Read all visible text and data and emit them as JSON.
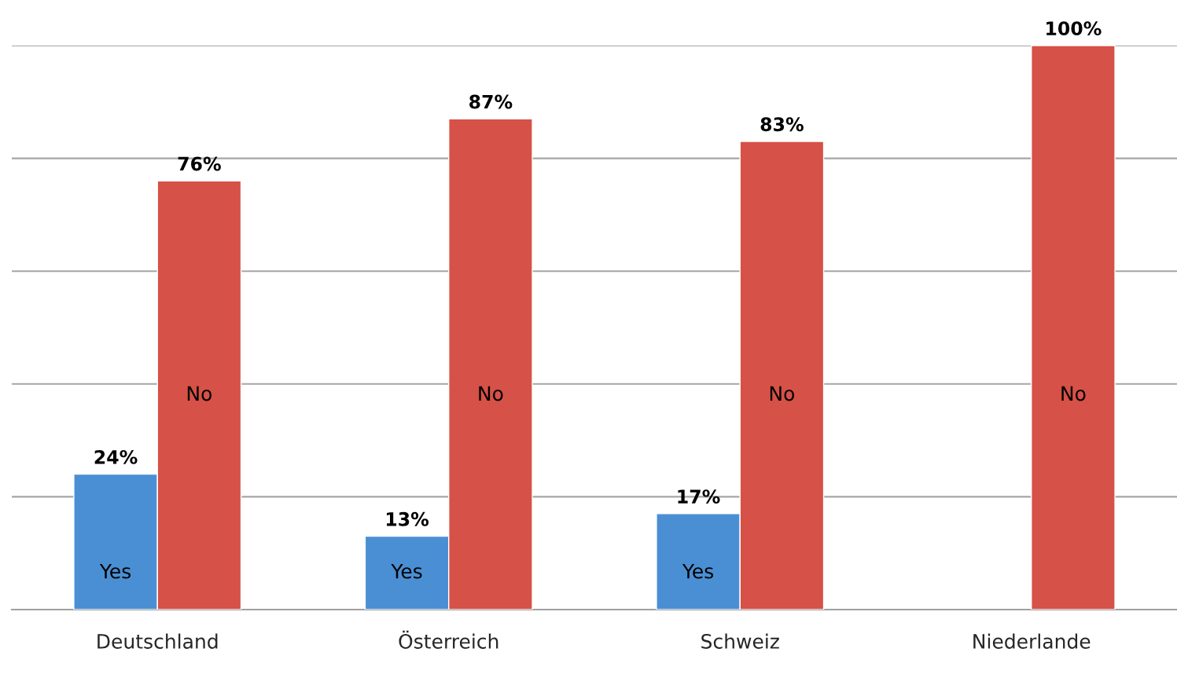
{
  "chart_data": {
    "type": "bar",
    "categories": [
      "Deutschland",
      "Österreich",
      "Schweiz",
      "Niederlande"
    ],
    "series": [
      {
        "name": "Yes",
        "color": "#4a8fd4",
        "values": [
          24,
          13,
          17,
          null
        ],
        "value_labels": [
          "24%",
          "13%",
          "17%",
          null
        ]
      },
      {
        "name": "No",
        "color": "#d65147",
        "values": [
          76,
          87,
          83,
          100
        ],
        "value_labels": [
          "76%",
          "87%",
          "83%",
          "100%"
        ]
      }
    ],
    "ylim": [
      0,
      100
    ],
    "yticks": [
      {
        "value": 0,
        "label": null
      },
      {
        "value": 20,
        "label": null
      },
      {
        "value": 40,
        "label": null
      },
      {
        "value": 60,
        "label": null
      },
      {
        "value": 80,
        "label": null
      },
      {
        "value": 100,
        "label": null
      }
    ],
    "grid": "y",
    "tick_labels": "x",
    "legend": false
  }
}
